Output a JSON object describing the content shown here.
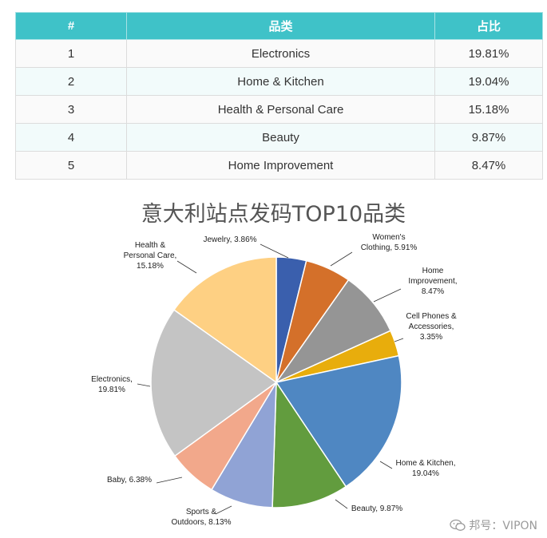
{
  "table": {
    "headers": [
      "#",
      "品类",
      "占比"
    ],
    "rows": [
      [
        "1",
        "Electronics",
        "19.81%"
      ],
      [
        "2",
        "Home & Kitchen",
        "19.04%"
      ],
      [
        "3",
        "Health & Personal Care",
        "15.18%"
      ],
      [
        "4",
        "Beauty",
        "9.87%"
      ],
      [
        "5",
        "Home Improvement",
        "8.47%"
      ]
    ]
  },
  "chart_data": {
    "type": "pie",
    "title": "意大利站点发码TOP10品类",
    "start": "12 o'clock, clockwise",
    "slices": [
      {
        "label": [
          "Jewelry, 3.86%"
        ],
        "value": 3.86,
        "color": "#3a5fad"
      },
      {
        "label": [
          "Women's",
          "Clothing, 5.91%"
        ],
        "value": 5.91,
        "color": "#d4702a"
      },
      {
        "label": [
          "Home",
          "Improvement,",
          "8.47%"
        ],
        "value": 8.47,
        "color": "#959595"
      },
      {
        "label": [
          "Cell Phones &",
          "Accessories,",
          "3.35%"
        ],
        "value": 3.35,
        "color": "#e8ad0c"
      },
      {
        "label": [
          "Home & Kitchen,",
          "19.04%"
        ],
        "value": 19.04,
        "color": "#4f87c2"
      },
      {
        "label": [
          "Beauty, 9.87%"
        ],
        "value": 9.87,
        "color": "#629c3e"
      },
      {
        "label": [
          "Sports &",
          "Outdoors, 8.13%"
        ],
        "value": 8.13,
        "color": "#90a3d5"
      },
      {
        "label": [
          "Baby, 6.38%"
        ],
        "value": 6.38,
        "color": "#f2a88b"
      },
      {
        "label": [
          "Electronics,",
          "19.81%"
        ],
        "value": 19.81,
        "color": "#c4c4c4"
      },
      {
        "label": [
          "Health &",
          "Personal Care,",
          "15.18%"
        ],
        "value": 15.18,
        "color": "#fed083"
      }
    ]
  },
  "watermark": {
    "text": "邦号：VIPON",
    "icon": "wechat-icon"
  }
}
